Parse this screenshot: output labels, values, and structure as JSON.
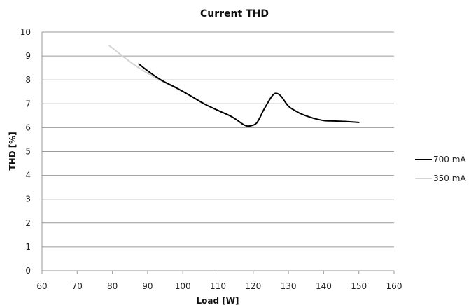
{
  "chart_data": {
    "type": "line",
    "title": "Current THD",
    "xlabel": "Load [W]",
    "ylabel": "THD [%]",
    "xlim": [
      60,
      160
    ],
    "ylim": [
      0,
      10
    ],
    "xticks": [
      60,
      70,
      80,
      90,
      100,
      110,
      120,
      130,
      140,
      150,
      160
    ],
    "yticks": [
      0,
      1,
      2,
      3,
      4,
      5,
      6,
      7,
      8,
      9,
      10
    ],
    "grid": "horizontal",
    "legend_position": "right",
    "series": [
      {
        "name": "700 mA",
        "color": "#000000",
        "x": [
          87.5,
          90,
          94,
          98,
          102,
          106,
          110,
          114,
          117,
          118,
          119,
          121,
          123,
          125,
          126,
          127,
          128,
          130,
          132,
          134,
          137,
          140,
          143,
          146,
          150
        ],
        "y": [
          8.67,
          8.38,
          7.98,
          7.68,
          7.35,
          7.0,
          6.72,
          6.45,
          6.15,
          6.08,
          6.07,
          6.2,
          6.75,
          7.25,
          7.42,
          7.42,
          7.3,
          6.9,
          6.7,
          6.55,
          6.4,
          6.3,
          6.28,
          6.26,
          6.22
        ]
      },
      {
        "name": "350 mA",
        "color": "#d4d4d4",
        "x": [
          79,
          82,
          86,
          90,
          94,
          98,
          102,
          106
        ],
        "y": [
          9.45,
          9.1,
          8.65,
          8.28,
          7.95,
          7.66,
          7.34,
          7.03
        ]
      }
    ]
  }
}
